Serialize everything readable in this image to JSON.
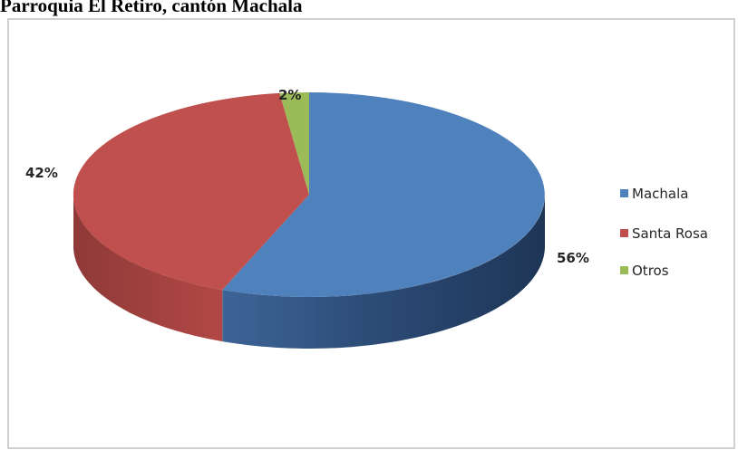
{
  "title": "Parroquia El Retiro, cantón Machala",
  "chart_data": {
    "type": "pie",
    "style": "3d",
    "title": "Parroquia El Retiro, cantón Machala",
    "categories": [
      "Machala",
      "Santa Rosa",
      "Otros"
    ],
    "values": [
      56,
      42,
      2
    ],
    "labels": [
      "56%",
      "42%",
      "2%"
    ],
    "colors": [
      "#4f81bd",
      "#c0504d",
      "#9bbb59"
    ],
    "legend_position": "right"
  }
}
